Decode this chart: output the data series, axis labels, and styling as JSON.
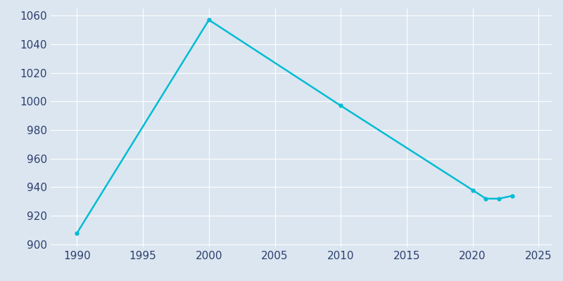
{
  "years": [
    1990,
    2000,
    2010,
    2020,
    2021,
    2022,
    2023
  ],
  "population": [
    908,
    1057,
    997,
    938,
    932,
    932,
    934
  ],
  "line_color": "#00BCD4",
  "bg_color": "#dce6f0",
  "plot_bg_color": "#dce6f0",
  "grid_color": "#ffffff",
  "tick_color": "#2d3f6e",
  "xlim": [
    1988,
    2026
  ],
  "ylim": [
    898,
    1065
  ],
  "xticks": [
    1990,
    1995,
    2000,
    2005,
    2010,
    2015,
    2020,
    2025
  ],
  "yticks": [
    900,
    920,
    940,
    960,
    980,
    1000,
    1020,
    1040,
    1060
  ],
  "line_width": 1.8,
  "marker": "o",
  "marker_size": 3.5,
  "tick_fontsize": 11
}
